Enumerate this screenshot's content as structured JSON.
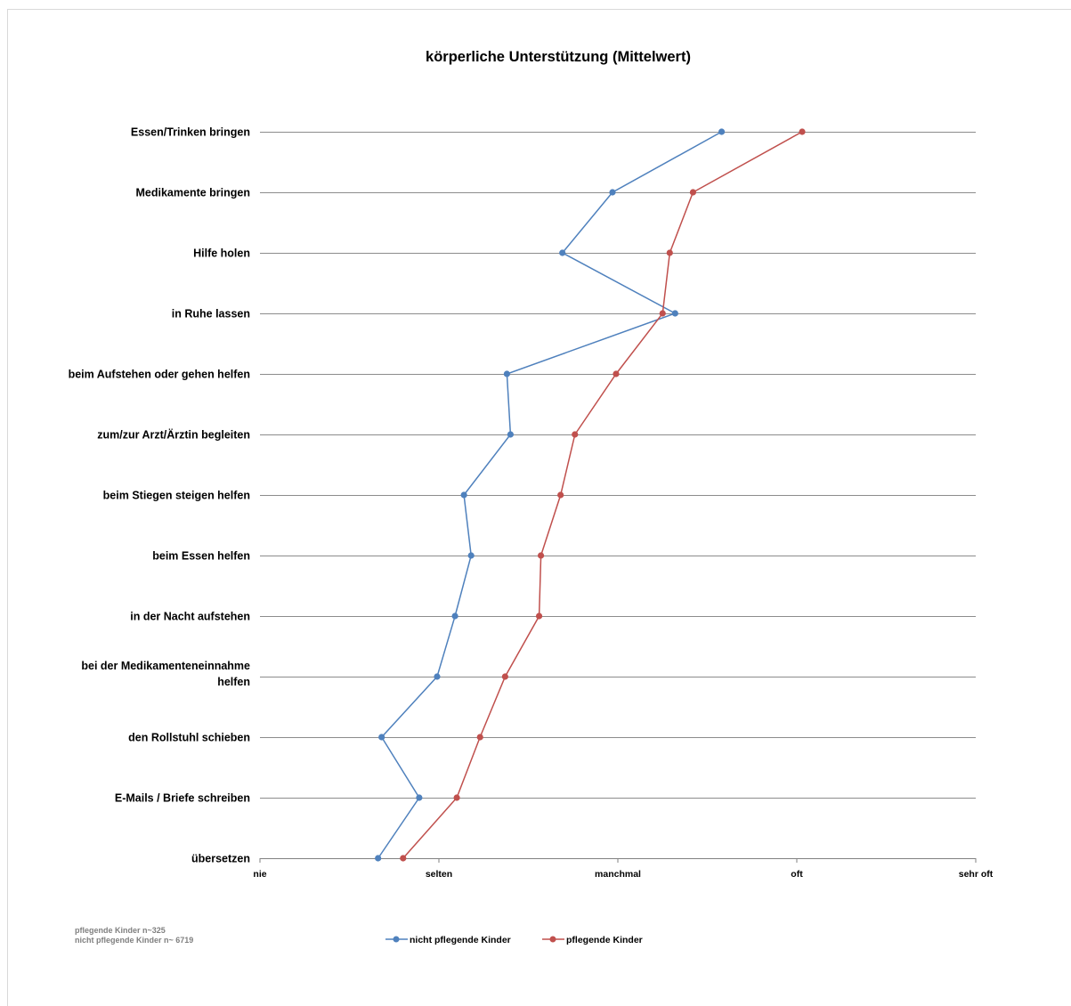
{
  "chart_data": {
    "type": "line",
    "orientation": "horizontal",
    "title": "körperliche Unterstützung (Mittelwert)",
    "categories": [
      "Essen/Trinken bringen",
      "Medikamente bringen",
      "Hilfe holen",
      "in Ruhe lassen",
      "beim Aufstehen oder gehen helfen",
      "zum/zur Arzt/Ärztin begleiten",
      "beim Stiegen steigen helfen",
      "beim Essen helfen",
      "in der Nacht aufstehen",
      [
        "bei der Medikamenteneinnahme",
        "helfen"
      ],
      "den Rollstuhl schieben",
      "E-Mails / Briefe schreiben",
      "übersetzen"
    ],
    "x_ticks": [
      "nie",
      "selten",
      "manchmal",
      "oft",
      "sehr oft"
    ],
    "xlim": [
      1,
      5
    ],
    "grid": true,
    "legend_position": "bottom",
    "series": [
      {
        "name": "nicht pflegende Kinder",
        "color": "#4f81bd",
        "values": [
          3.58,
          2.97,
          2.69,
          3.32,
          2.38,
          2.4,
          2.14,
          2.18,
          2.09,
          1.99,
          1.68,
          1.89,
          1.66
        ]
      },
      {
        "name": "pflegende Kinder",
        "color": "#c0504d",
        "values": [
          4.03,
          3.42,
          3.29,
          3.25,
          2.99,
          2.76,
          2.68,
          2.57,
          2.56,
          2.37,
          2.23,
          2.1,
          1.8
        ]
      }
    ]
  },
  "note": {
    "line1": "pflegende Kinder n~325",
    "line2": "nicht pflegende Kinder n~ 6719"
  }
}
